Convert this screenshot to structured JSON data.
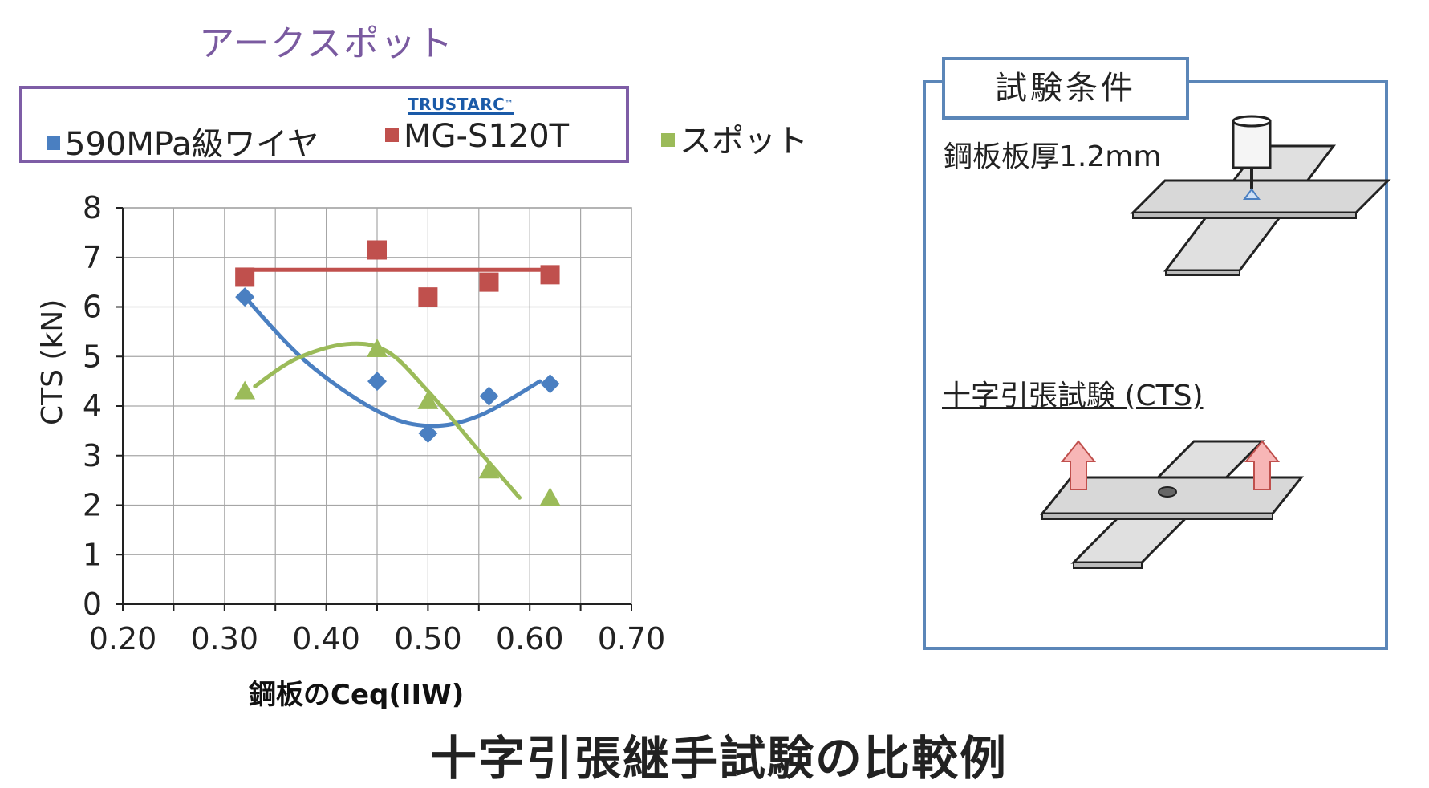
{
  "header": {
    "arc_spot_title": "アークスポット",
    "main_title": "十字引張継手試験の比較例"
  },
  "legend": {
    "items": [
      {
        "label": "590MPa級ワイヤ",
        "color": "#4a7fc1"
      },
      {
        "label": "MG-S120T",
        "color": "#c0504d"
      }
    ],
    "spot_label": "スポット",
    "spot_color": "#9bbb59",
    "logo_text": "TRUSTARC",
    "logo_mark": "™"
  },
  "panel": {
    "tab_title": "試験条件",
    "thickness": "鋼板板厚1.2mm",
    "cts_test": "十字引張試験 (CTS)"
  },
  "chart_data": {
    "type": "scatter",
    "xlabel": "鋼板のCeq(IIW)",
    "ylabel": "CTS (kN)",
    "xlim": [
      0.2,
      0.7
    ],
    "ylim": [
      0,
      8
    ],
    "x_ticks": [
      "0.20",
      "0.30",
      "0.40",
      "0.50",
      "0.60",
      "0.70"
    ],
    "y_ticks": [
      "0",
      "1",
      "2",
      "3",
      "4",
      "5",
      "6",
      "7",
      "8"
    ],
    "grid": true,
    "series": [
      {
        "name": "590MPa級ワイヤ",
        "marker": "diamond",
        "color": "#4a7fc1",
        "x": [
          0.32,
          0.45,
          0.5,
          0.56,
          0.62
        ],
        "y": [
          6.2,
          4.5,
          3.45,
          4.2,
          4.45
        ],
        "trendline": {
          "type": "polynomial",
          "x": [
            0.32,
            0.38,
            0.45,
            0.5,
            0.55,
            0.61
          ],
          "y": [
            6.2,
            4.9,
            3.9,
            3.6,
            3.8,
            4.5
          ]
        }
      },
      {
        "name": "MG-S120T",
        "marker": "square",
        "color": "#c0504d",
        "x": [
          0.32,
          0.45,
          0.5,
          0.56,
          0.62
        ],
        "y": [
          6.6,
          7.15,
          6.2,
          6.5,
          6.65
        ],
        "trendline": {
          "type": "linear",
          "x": [
            0.32,
            0.61
          ],
          "y": [
            6.75,
            6.75
          ]
        }
      },
      {
        "name": "スポット",
        "marker": "triangle",
        "color": "#9bbb59",
        "x": [
          0.32,
          0.45,
          0.5,
          0.56,
          0.62
        ],
        "y": [
          4.3,
          5.15,
          4.1,
          2.7,
          2.15
        ],
        "trendline": {
          "type": "polynomial",
          "x": [
            0.33,
            0.37,
            0.42,
            0.46,
            0.5,
            0.55,
            0.59
          ],
          "y": [
            4.4,
            4.95,
            5.25,
            5.1,
            4.3,
            3.1,
            2.15
          ]
        }
      }
    ]
  }
}
